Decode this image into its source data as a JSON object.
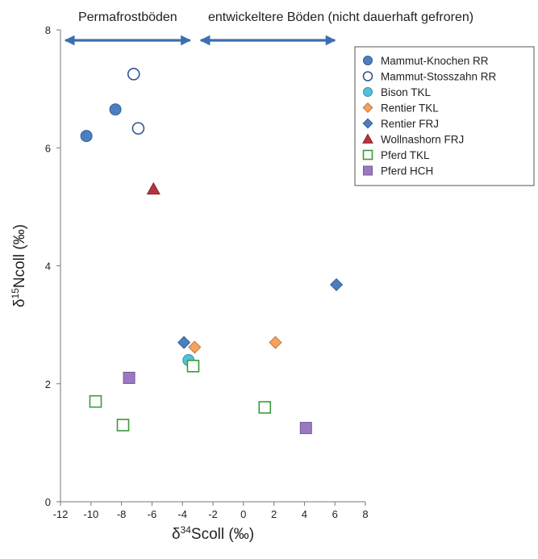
{
  "chart_data": {
    "type": "scatter",
    "xlim": [
      -12,
      8
    ],
    "ylim": [
      0,
      8
    ],
    "x_ticks": [
      -12,
      -10,
      -8,
      -6,
      -4,
      -2,
      0,
      2,
      4,
      6,
      8
    ],
    "y_ticks": [
      0,
      2,
      4,
      6,
      8
    ],
    "x_tick_labels": [
      "-12",
      "-10",
      "-8",
      "-6",
      "-4",
      "-2",
      "0",
      "2",
      "4",
      "6",
      "8"
    ],
    "y_tick_labels": [
      "0",
      "2",
      "4",
      "6",
      "8"
    ],
    "xlabel": {
      "base": "δ",
      "sup": "34",
      "rest": "Scoll (‰)"
    },
    "ylabel": {
      "base": "δ",
      "sup": "15",
      "rest": "Ncoll (‰)"
    },
    "grid": false,
    "legend_position": "top-right",
    "regions": [
      {
        "label": "Permafrostböden",
        "x_range": [
          -12,
          -3.5
        ]
      },
      {
        "label": "entwickeltere Böden (nicht dauerhaft gefroren)",
        "x_range": [
          -2.8,
          6
        ]
      }
    ],
    "arrow_color": "#3d6fb0",
    "series": [
      {
        "name": "Mammut-Knochen RR",
        "marker": "circle",
        "filled": true,
        "color": "#4a7fc1",
        "points": [
          [
            -10.3,
            6.2
          ],
          [
            -8.4,
            6.65
          ]
        ]
      },
      {
        "name": "Mammut-Stosszahn RR",
        "marker": "circle",
        "filled": false,
        "color": "#2e5597",
        "points": [
          [
            -7.2,
            7.25
          ],
          [
            -6.9,
            6.33
          ]
        ]
      },
      {
        "name": "Bison TKL",
        "marker": "circle",
        "filled": true,
        "color": "#4fc3d9",
        "points": [
          [
            -3.6,
            2.4
          ]
        ]
      },
      {
        "name": "Rentier TKL",
        "marker": "diamond",
        "filled": true,
        "color": "#f5a25a",
        "points": [
          [
            -3.2,
            2.62
          ],
          [
            2.1,
            2.7
          ]
        ]
      },
      {
        "name": "Rentier FRJ",
        "marker": "diamond",
        "filled": true,
        "color": "#4a7fc1",
        "points": [
          [
            -3.9,
            2.7
          ],
          [
            6.1,
            3.68
          ]
        ]
      },
      {
        "name": "Wollnashorn FRJ",
        "marker": "triangle",
        "filled": true,
        "color": "#b8333a",
        "points": [
          [
            -5.9,
            5.3
          ]
        ]
      },
      {
        "name": "Pferd TKL",
        "marker": "square",
        "filled": false,
        "color": "#3b9a3b",
        "points": [
          [
            -3.3,
            2.3
          ],
          [
            -9.7,
            1.7
          ],
          [
            -7.9,
            1.3
          ],
          [
            1.4,
            1.6
          ]
        ]
      },
      {
        "name": "Pferd HCH",
        "marker": "square",
        "filled": true,
        "color": "#9b78c2",
        "points": [
          [
            -7.5,
            2.1
          ],
          [
            4.1,
            1.25
          ]
        ]
      }
    ]
  }
}
